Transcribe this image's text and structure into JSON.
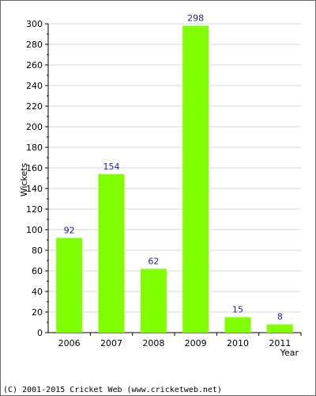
{
  "chart_data": {
    "type": "bar",
    "categories": [
      "2006",
      "2007",
      "2008",
      "2009",
      "2010",
      "2011"
    ],
    "values": [
      92,
      154,
      62,
      298,
      15,
      8
    ],
    "data_labels": [
      "92",
      "154",
      "62",
      "298",
      "15",
      "8"
    ],
    "xlabel": "Year",
    "ylabel": "Wickets",
    "ylim": [
      0,
      300
    ],
    "yticks": [
      0,
      20,
      40,
      60,
      80,
      100,
      120,
      140,
      160,
      180,
      200,
      220,
      240,
      260,
      280,
      300
    ],
    "grid": true,
    "bar_color": "#80ff00",
    "label_color": "#1f1f9e"
  },
  "footer": {
    "text": "(C) 2001-2015 Cricket Web (www.cricketweb.net)"
  }
}
